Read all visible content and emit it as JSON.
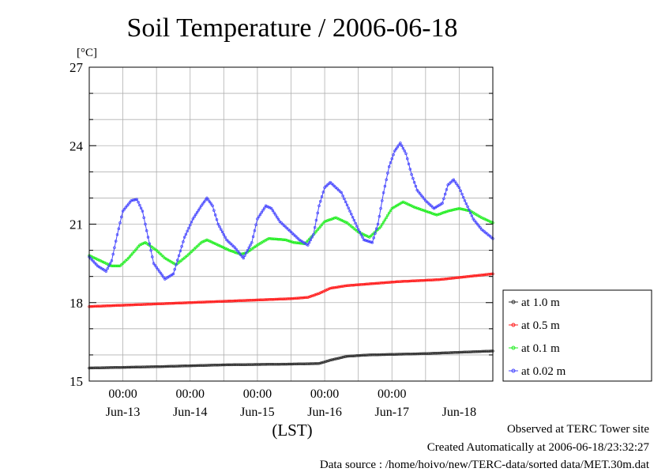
{
  "chart_data": {
    "type": "line",
    "title": "Soil Temperature / 2006-06-18",
    "ylabel": "[°C]",
    "xlabel": "(LST)",
    "ylim": [
      15,
      27
    ],
    "yticks": [
      15,
      18,
      21,
      24,
      27
    ],
    "y_minor_step": 1,
    "x_unit": "hours since 2006-06-12 12:00 LST",
    "xlim": [
      0,
      144
    ],
    "time_ticks": [
      {
        "x": 12,
        "label": "00:00"
      },
      {
        "x": 36,
        "label": "00:00"
      },
      {
        "x": 60,
        "label": "00:00"
      },
      {
        "x": 84,
        "label": "00:00"
      },
      {
        "x": 108,
        "label": "00:00"
      }
    ],
    "day_labels": [
      {
        "x": 12,
        "label": "Jun-13"
      },
      {
        "x": 36,
        "label": "Jun-14"
      },
      {
        "x": 60,
        "label": "Jun-15"
      },
      {
        "x": 84,
        "label": "Jun-16"
      },
      {
        "x": 108,
        "label": "Jun-17"
      },
      {
        "x": 132,
        "label": "Jun-18"
      }
    ],
    "x_grid": [
      12,
      24,
      36,
      48,
      60,
      72,
      84,
      96,
      108,
      120,
      132
    ],
    "grid": true,
    "legend_position": "right",
    "series": [
      {
        "name": "at 1.0 m",
        "color": "#333333",
        "points": [
          [
            0,
            15.5
          ],
          [
            24,
            15.55
          ],
          [
            48,
            15.62
          ],
          [
            72,
            15.65
          ],
          [
            82,
            15.67
          ],
          [
            86,
            15.8
          ],
          [
            92,
            15.95
          ],
          [
            100,
            16.0
          ],
          [
            120,
            16.05
          ],
          [
            144,
            16.15
          ]
        ]
      },
      {
        "name": "at 0.5 m",
        "color": "#ff2020",
        "points": [
          [
            0,
            17.85
          ],
          [
            24,
            17.95
          ],
          [
            48,
            18.05
          ],
          [
            72,
            18.15
          ],
          [
            78,
            18.2
          ],
          [
            82,
            18.35
          ],
          [
            86,
            18.55
          ],
          [
            92,
            18.65
          ],
          [
            110,
            18.8
          ],
          [
            125,
            18.88
          ],
          [
            144,
            19.1
          ]
        ]
      },
      {
        "name": "at 0.1 m",
        "color": "#22ee22",
        "points": [
          [
            0,
            19.8
          ],
          [
            4,
            19.6
          ],
          [
            8,
            19.4
          ],
          [
            11,
            19.4
          ],
          [
            14,
            19.7
          ],
          [
            18,
            20.2
          ],
          [
            20,
            20.3
          ],
          [
            24,
            20.0
          ],
          [
            27,
            19.7
          ],
          [
            31,
            19.45
          ],
          [
            35,
            19.8
          ],
          [
            40,
            20.3
          ],
          [
            42,
            20.4
          ],
          [
            46,
            20.2
          ],
          [
            50,
            20.0
          ],
          [
            54,
            19.85
          ],
          [
            56,
            19.9
          ],
          [
            60,
            20.2
          ],
          [
            64,
            20.45
          ],
          [
            70,
            20.4
          ],
          [
            73,
            20.3
          ],
          [
            77,
            20.25
          ],
          [
            80,
            20.6
          ],
          [
            84,
            21.1
          ],
          [
            88,
            21.25
          ],
          [
            92,
            21.05
          ],
          [
            96,
            20.7
          ],
          [
            100,
            20.5
          ],
          [
            104,
            20.9
          ],
          [
            108,
            21.6
          ],
          [
            112,
            21.85
          ],
          [
            116,
            21.65
          ],
          [
            120,
            21.5
          ],
          [
            124,
            21.35
          ],
          [
            128,
            21.5
          ],
          [
            132,
            21.6
          ],
          [
            136,
            21.5
          ],
          [
            140,
            21.25
          ],
          [
            144,
            21.05
          ]
        ]
      },
      {
        "name": "at 0.02 m",
        "color": "#4444ff",
        "points": [
          [
            0,
            19.75
          ],
          [
            3,
            19.4
          ],
          [
            6,
            19.2
          ],
          [
            8,
            19.6
          ],
          [
            10,
            20.6
          ],
          [
            12,
            21.5
          ],
          [
            15,
            21.9
          ],
          [
            17,
            21.95
          ],
          [
            19,
            21.5
          ],
          [
            21,
            20.5
          ],
          [
            23,
            19.5
          ],
          [
            27,
            18.9
          ],
          [
            30,
            19.1
          ],
          [
            32,
            19.8
          ],
          [
            34,
            20.5
          ],
          [
            37,
            21.2
          ],
          [
            40,
            21.7
          ],
          [
            42,
            22.0
          ],
          [
            44,
            21.7
          ],
          [
            46,
            21.0
          ],
          [
            49,
            20.4
          ],
          [
            52,
            20.1
          ],
          [
            55,
            19.7
          ],
          [
            58,
            20.3
          ],
          [
            60,
            21.2
          ],
          [
            63,
            21.7
          ],
          [
            65,
            21.6
          ],
          [
            68,
            21.1
          ],
          [
            72,
            20.7
          ],
          [
            75,
            20.4
          ],
          [
            78,
            20.2
          ],
          [
            80,
            20.6
          ],
          [
            82,
            21.7
          ],
          [
            84,
            22.4
          ],
          [
            86,
            22.6
          ],
          [
            88,
            22.4
          ],
          [
            90,
            22.2
          ],
          [
            93,
            21.5
          ],
          [
            96,
            20.8
          ],
          [
            98,
            20.4
          ],
          [
            101,
            20.3
          ],
          [
            103,
            21.0
          ],
          [
            105,
            22.2
          ],
          [
            107,
            23.2
          ],
          [
            109,
            23.8
          ],
          [
            111,
            24.1
          ],
          [
            113,
            23.7
          ],
          [
            115,
            22.9
          ],
          [
            117,
            22.3
          ],
          [
            120,
            21.9
          ],
          [
            123,
            21.6
          ],
          [
            126,
            21.8
          ],
          [
            128,
            22.5
          ],
          [
            130,
            22.7
          ],
          [
            132,
            22.4
          ],
          [
            134,
            21.9
          ],
          [
            137,
            21.2
          ],
          [
            140,
            20.8
          ],
          [
            144,
            20.45
          ]
        ]
      }
    ]
  },
  "footer": {
    "observed": "Observed at TERC Tower site",
    "created": "Created Automatically at 2006-06-18/23:32:27",
    "source": "Data source : /home/hoivo/new/TERC-data/sorted  data/MET.30m.dat"
  }
}
